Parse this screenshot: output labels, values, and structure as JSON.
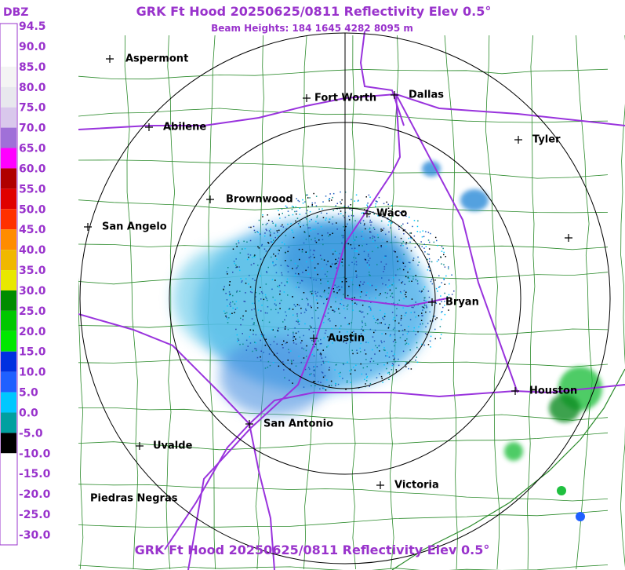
{
  "title": "GRK Ft Hood 20250625/0811 Reflectivity Elev 0.5°",
  "subtitle": "Beam Heights: 184 1645 4282 8095 m",
  "footer_title": "GRK Ft Hood 20250625/0811 Reflectivity Elev 0.5°",
  "scale": {
    "unit": "DBZ",
    "levels": [
      {
        "label": "94.5",
        "color": "#ffffff"
      },
      {
        "label": "90.0",
        "color": "#ffffff"
      },
      {
        "label": "85.0",
        "color": "#f4f4f4"
      },
      {
        "label": "80.0",
        "color": "#e8e8ee"
      },
      {
        "label": "75.0",
        "color": "#d9c8ec"
      },
      {
        "label": "70.0",
        "color": "#a070d8"
      },
      {
        "label": "65.0",
        "color": "#ff00ff"
      },
      {
        "label": "60.0",
        "color": "#b00000"
      },
      {
        "label": "55.0",
        "color": "#e00000"
      },
      {
        "label": "50.0",
        "color": "#ff3000"
      },
      {
        "label": "45.0",
        "color": "#ff8c00"
      },
      {
        "label": "40.0",
        "color": "#f0b800"
      },
      {
        "label": "35.0",
        "color": "#e8e800"
      },
      {
        "label": "30.0",
        "color": "#008c00"
      },
      {
        "label": "25.0",
        "color": "#00c800"
      },
      {
        "label": "20.0",
        "color": "#00e800"
      },
      {
        "label": "15.0",
        "color": "#0030e0"
      },
      {
        "label": "10.0",
        "color": "#2060ff"
      },
      {
        "label": "5.0",
        "color": "#00c8ff"
      },
      {
        "label": "0.0",
        "color": "#00a0a0"
      },
      {
        "label": "-5.0",
        "color": "#000000"
      },
      {
        "label": "-10.0",
        "color": "#ffffff"
      },
      {
        "label": "-15.0",
        "color": "#ffffff"
      },
      {
        "label": "-20.0",
        "color": "#ffffff"
      },
      {
        "label": "-25.0",
        "color": "#ffffff"
      },
      {
        "label": "-30.0",
        "color": "#ffffff"
      }
    ]
  },
  "cities": [
    {
      "name": "Aspermont"
    },
    {
      "name": "Fort Worth"
    },
    {
      "name": "Dallas"
    },
    {
      "name": "Abilene"
    },
    {
      "name": "Tyler"
    },
    {
      "name": "Brownwood"
    },
    {
      "name": "Waco"
    },
    {
      "name": "San Angelo"
    },
    {
      "name": "Bryan"
    },
    {
      "name": "Austin"
    },
    {
      "name": "Houston"
    },
    {
      "name": "San Antonio"
    },
    {
      "name": "Uvalde"
    },
    {
      "name": "Victoria"
    },
    {
      "name": "Piedras Negras"
    }
  ]
}
